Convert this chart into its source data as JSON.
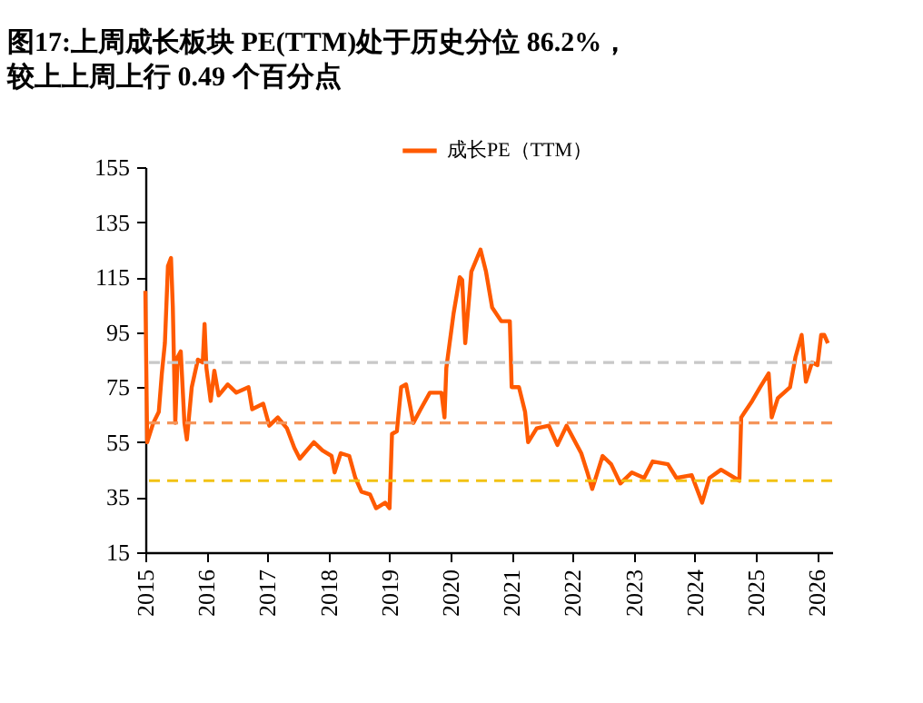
{
  "chart_data": {
    "type": "line",
    "title": "图17:上周成长板块 PE(TTM)处于历史分位 86.2%，",
    "subtitle": "较上上周上行 0.49 个百分点",
    "x": [
      2015.0,
      2015.03,
      2015.13,
      2015.22,
      2015.27,
      2015.32,
      2015.37,
      2015.42,
      2015.45,
      2015.49,
      2015.53,
      2015.58,
      2015.64,
      2015.68,
      2015.76,
      2015.86,
      2015.94,
      2015.97,
      2016.0,
      2016.07,
      2016.13,
      2016.2,
      2016.35,
      2016.49,
      2016.69,
      2016.75,
      2016.93,
      2017.03,
      2017.17,
      2017.32,
      2017.44,
      2017.53,
      2017.76,
      2017.9,
      2018.05,
      2018.1,
      2018.2,
      2018.34,
      2018.44,
      2018.54,
      2018.68,
      2018.78,
      2018.93,
      2019.0,
      2019.04,
      2019.12,
      2019.19,
      2019.27,
      2019.39,
      2019.51,
      2019.66,
      2019.85,
      2019.9,
      2019.93,
      2020.05,
      2020.15,
      2020.19,
      2020.24,
      2020.34,
      2020.49,
      2020.58,
      2020.68,
      2020.83,
      2020.97,
      2021.0,
      2021.12,
      2021.22,
      2021.27,
      2021.41,
      2021.61,
      2021.75,
      2021.9,
      2022.14,
      2022.24,
      2022.32,
      2022.49,
      2022.63,
      2022.78,
      2022.97,
      2023.17,
      2023.31,
      2023.56,
      2023.7,
      2023.95,
      2024.12,
      2024.24,
      2024.43,
      2024.73,
      2024.76,
      2024.82,
      2024.94,
      2025.07,
      2025.21,
      2025.26,
      2025.36,
      2025.56,
      2025.65,
      2025.75,
      2025.82,
      2025.92,
      2026.01,
      2026.07,
      2026.12,
      2026.18
    ],
    "series": [
      {
        "name": "成长PE（TTM）",
        "color": "#ff5a00",
        "values": [
          110,
          55,
          62,
          66,
          80,
          91,
          119,
          122,
          104,
          62,
          86,
          88,
          62,
          56,
          75,
          85,
          84,
          98,
          82,
          70,
          81,
          72,
          76,
          73,
          75,
          67,
          69,
          61,
          64,
          60,
          53,
          49,
          55,
          52,
          50,
          44,
          51,
          50,
          42,
          37,
          36,
          31,
          33,
          31,
          58,
          59,
          75,
          76,
          62,
          67,
          73,
          73,
          64,
          82,
          102,
          115,
          114,
          91,
          117,
          125,
          117,
          104,
          99,
          99,
          75,
          75,
          66,
          55,
          60,
          61,
          54,
          61,
          51,
          44,
          38,
          50,
          47,
          40,
          44,
          42,
          48,
          47,
          42,
          43,
          33,
          42,
          45,
          41,
          64,
          66,
          70,
          75,
          80,
          64,
          71,
          75,
          86,
          94,
          77,
          84,
          83,
          94,
          94,
          91
        ]
      }
    ],
    "xlim": [
      2015,
      2026.25
    ],
    "xticks": [
      2015,
      2016,
      2017,
      2018,
      2019,
      2020,
      2021,
      2022,
      2023,
      2024,
      2025,
      2026
    ],
    "ylim": [
      15,
      155
    ],
    "yticks": [
      15,
      35,
      55,
      75,
      95,
      115,
      135,
      155
    ],
    "ref_lines": [
      {
        "axis": "y",
        "value": 84,
        "color": "#c8c8c8",
        "line_style": "dashed"
      },
      {
        "axis": "y",
        "value": 62,
        "color": "#f5955a",
        "line_style": "dashed"
      },
      {
        "axis": "y",
        "value": 41,
        "color": "#f2c214",
        "line_style": "dashed"
      }
    ],
    "legend": "top",
    "grid": false,
    "line_style": "solid",
    "marker": "none"
  }
}
